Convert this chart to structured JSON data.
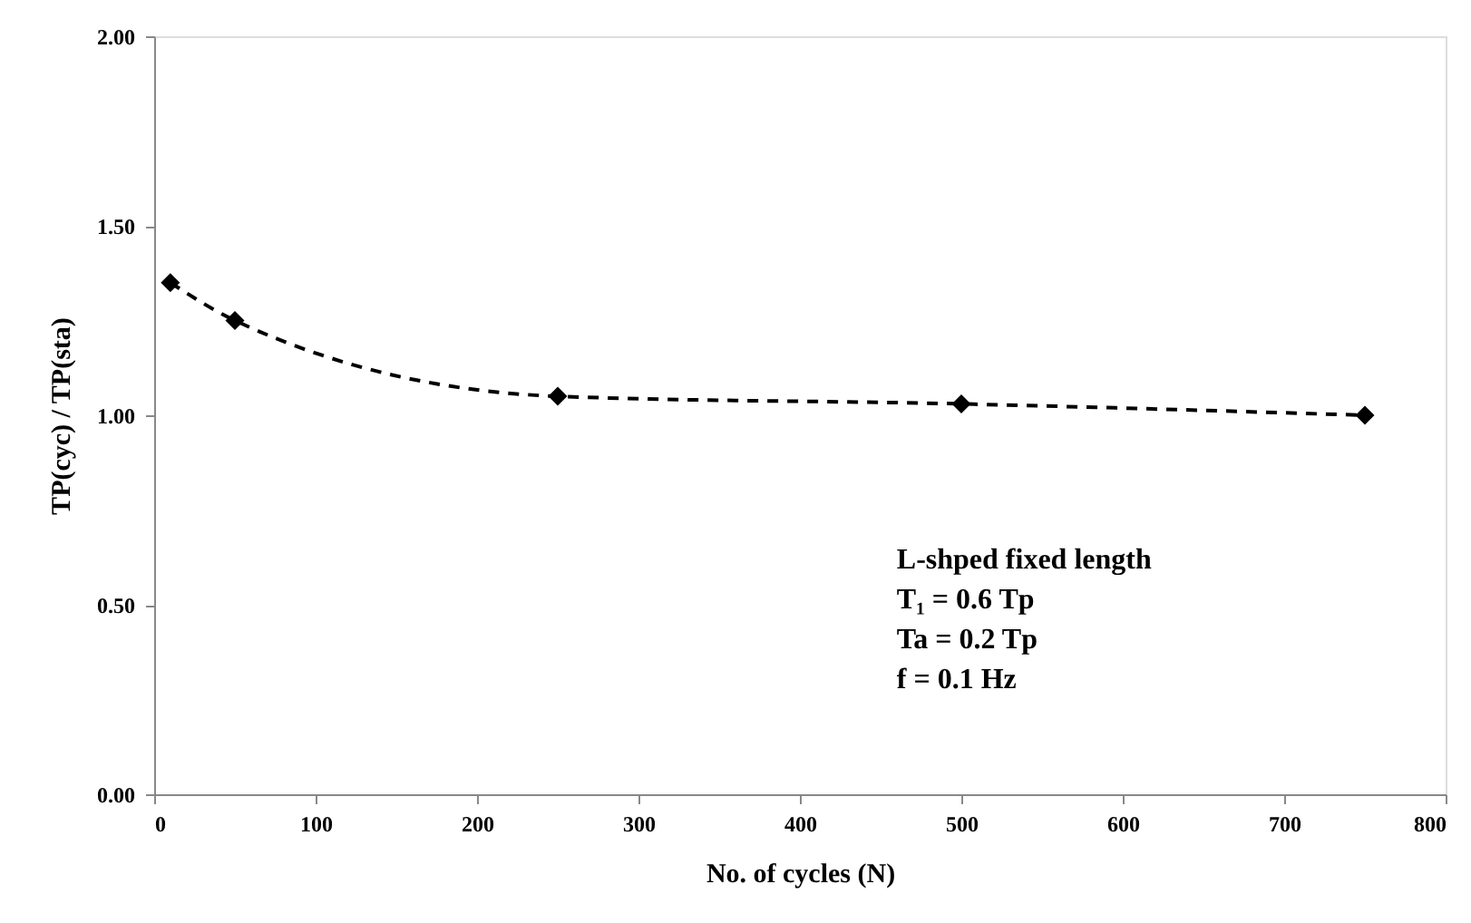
{
  "chart_data": {
    "type": "line",
    "xlabel": "No. of cycles (N)",
    "ylabel": "TP(cyc) / TP(sta)",
    "x": [
      10,
      50,
      250,
      500,
      750
    ],
    "series": [
      {
        "color": "#000000",
        "values": [
          1.35,
          1.25,
          1.05,
          1.03,
          1.0
        ]
      }
    ],
    "marker": "diamond",
    "line_style": "dashed",
    "grid": false,
    "xlim": [
      0,
      800
    ],
    "xticks": [
      0,
      100,
      200,
      300,
      400,
      500,
      600,
      700,
      800
    ],
    "ylim": [
      0,
      2
    ],
    "yticks": [
      {
        "value": 0,
        "label": "0.00"
      },
      {
        "value": 0.5,
        "label": "0.50"
      },
      {
        "value": 1,
        "label": "1.00"
      },
      {
        "value": 1.5,
        "label": "1.50"
      },
      {
        "value": 2,
        "label": "2.00"
      }
    ],
    "annotations": [
      "L-shped fixed length",
      "T₁ = 0.6 Tp",
      "Ta = 0.2 Tp",
      "f = 0.1 Hz"
    ]
  }
}
